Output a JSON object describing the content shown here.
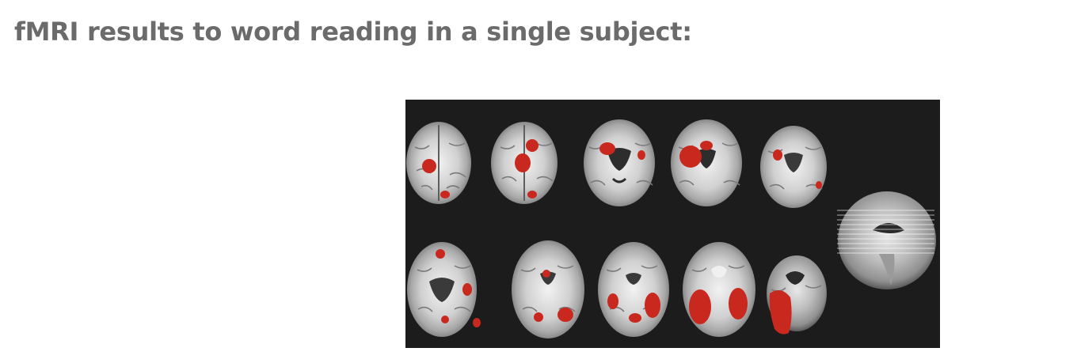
{
  "page": {
    "title": "fMRI results to word reading in a single subject:"
  },
  "figure": {
    "background_color": "#1c1c1c",
    "activation_color": "#c8281e",
    "axial_slices_row1": 5,
    "axial_slices_row2": 5,
    "has_sagittal_reference": true
  }
}
